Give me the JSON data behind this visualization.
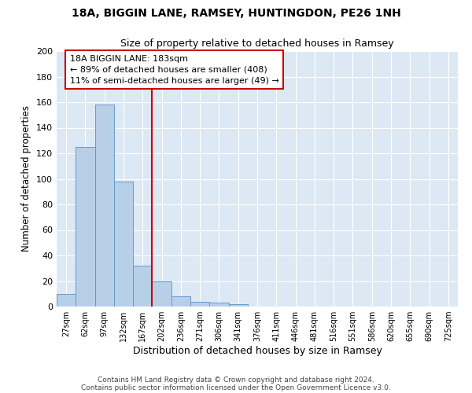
{
  "title1": "18A, BIGGIN LANE, RAMSEY, HUNTINGDON, PE26 1NH",
  "title2": "Size of property relative to detached houses in Ramsey",
  "xlabel": "Distribution of detached houses by size in Ramsey",
  "ylabel": "Number of detached properties",
  "footnote1": "Contains HM Land Registry data © Crown copyright and database right 2024.",
  "footnote2": "Contains public sector information licensed under the Open Government Licence v3.0.",
  "bar_labels": [
    "27sqm",
    "62sqm",
    "97sqm",
    "132sqm",
    "167sqm",
    "202sqm",
    "236sqm",
    "271sqm",
    "306sqm",
    "341sqm",
    "376sqm",
    "411sqm",
    "446sqm",
    "481sqm",
    "516sqm",
    "551sqm",
    "586sqm",
    "620sqm",
    "655sqm",
    "690sqm",
    "725sqm"
  ],
  "bar_values": [
    10,
    125,
    158,
    98,
    32,
    20,
    8,
    4,
    3,
    2,
    0,
    0,
    0,
    0,
    0,
    0,
    0,
    0,
    0,
    0,
    0
  ],
  "bar_color": "#b8cfe8",
  "bar_edge_color": "#6699cc",
  "background_color": "#dde8f5",
  "grid_color": "#ffffff",
  "vline_x": 4.5,
  "vline_color": "#cc0000",
  "annotation_line1": "18A BIGGIN LANE: 183sqm",
  "annotation_line2": "← 89% of detached houses are smaller (408)",
  "annotation_line3": "11% of semi-detached houses are larger (49) →",
  "annotation_box_color": "#cc0000",
  "ylim": [
    0,
    200
  ],
  "yticks": [
    0,
    20,
    40,
    60,
    80,
    100,
    120,
    140,
    160,
    180,
    200
  ]
}
